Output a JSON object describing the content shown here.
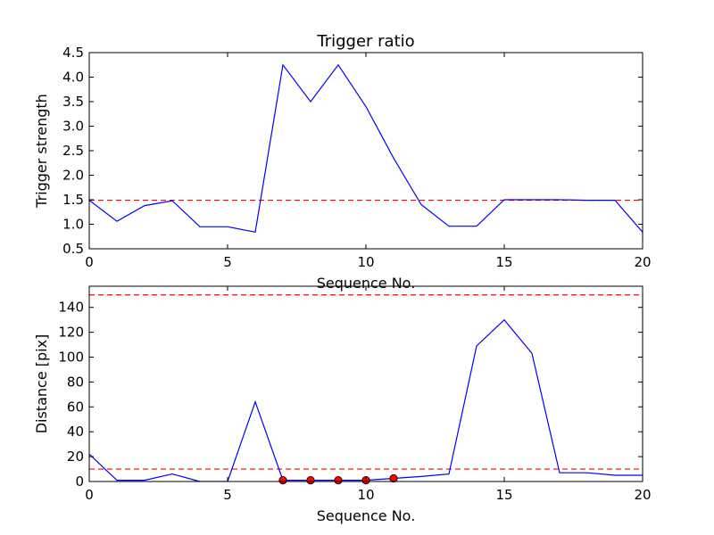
{
  "chart_data": [
    {
      "type": "line",
      "title": "Trigger ratio",
      "xlabel": "Sequence No.",
      "ylabel": "Trigger strength",
      "xlim": [
        0,
        20
      ],
      "ylim": [
        0.5,
        4.5
      ],
      "xticks": [
        0,
        5,
        10,
        15,
        20
      ],
      "xtick_labels": [
        "0",
        "5",
        "10",
        "15",
        "20"
      ],
      "yticks": [
        0.5,
        1.0,
        1.5,
        2.0,
        2.5,
        3.0,
        3.5,
        4.0,
        4.5
      ],
      "ytick_labels": [
        "0.5",
        "1.0",
        "1.5",
        "2.0",
        "2.5",
        "3.0",
        "3.5",
        "4.0",
        "4.5"
      ],
      "grid": false,
      "series": [
        {
          "color": "#0000ff",
          "style": "solid",
          "x": [
            0,
            1,
            2,
            3,
            4,
            5,
            6,
            7,
            8,
            9,
            10,
            11,
            12,
            13,
            14,
            15,
            16,
            17,
            18,
            19,
            20
          ],
          "values": [
            1.49,
            1.06,
            1.38,
            1.48,
            0.95,
            0.95,
            0.84,
            4.25,
            3.5,
            4.25,
            3.4,
            2.35,
            1.4,
            0.96,
            0.96,
            1.5,
            1.5,
            1.5,
            1.49,
            1.49,
            0.84
          ]
        }
      ],
      "hlines": [
        {
          "y": 1.49,
          "color": "#ff0000",
          "style": "dashed"
        }
      ]
    },
    {
      "type": "line",
      "title": "",
      "xlabel": "Sequence No.",
      "ylabel": "Distance [pix]",
      "xlim": [
        0,
        20
      ],
      "ylim": [
        0,
        157
      ],
      "xticks": [
        0,
        5,
        10,
        15,
        20
      ],
      "xtick_labels": [
        "0",
        "5",
        "10",
        "15",
        "20"
      ],
      "yticks": [
        0,
        20,
        40,
        60,
        80,
        100,
        120,
        140
      ],
      "ytick_labels": [
        "0",
        "20",
        "40",
        "60",
        "80",
        "100",
        "120",
        "140"
      ],
      "grid": false,
      "series": [
        {
          "color": "#0000ff",
          "style": "solid",
          "x": [
            0,
            1,
            2,
            3,
            4,
            5,
            6,
            7,
            8,
            9,
            10,
            11,
            12,
            13,
            14,
            15,
            16,
            17,
            18,
            19,
            20
          ],
          "values": [
            22,
            1,
            1,
            6,
            0,
            0,
            64,
            1,
            1,
            1,
            1,
            2.5,
            4,
            6,
            109,
            130,
            103,
            7,
            7,
            5,
            5
          ]
        }
      ],
      "markers": {
        "color": "#ff0000",
        "x": [
          7,
          8,
          9,
          10,
          11
        ],
        "y": [
          1,
          1,
          1,
          1,
          2.5
        ]
      },
      "hlines": [
        {
          "y": 150,
          "color": "#ff0000",
          "style": "dashed"
        },
        {
          "y": 10,
          "color": "#ff0000",
          "style": "dashed"
        }
      ]
    }
  ]
}
